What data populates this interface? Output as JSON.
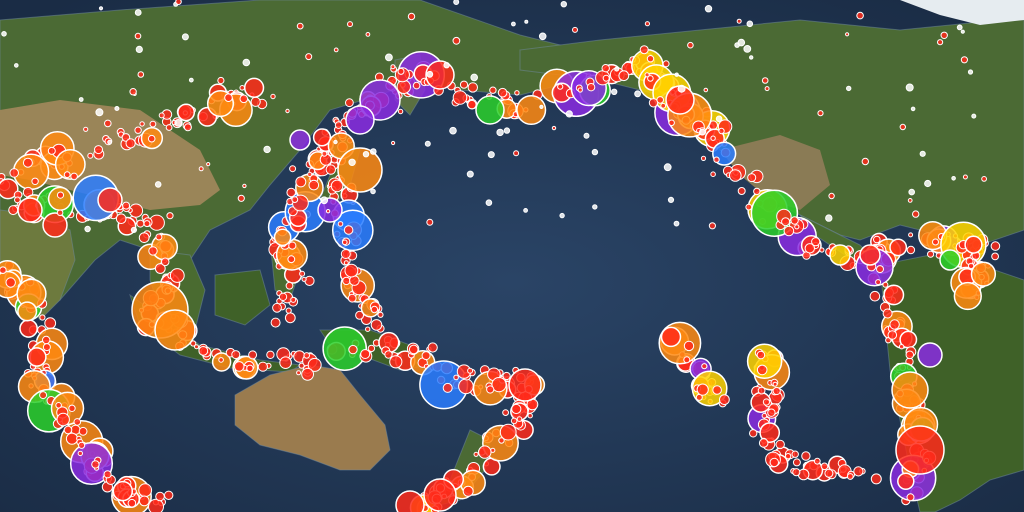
{
  "map": {
    "projection": "pacific-centered",
    "basemap": "satellite-blue-marble",
    "colors": {
      "ocean": "#1f3550",
      "ocean_shallow": "#3a5a7e",
      "land_green": "#3f5a2a",
      "land_dry": "#a08a5c",
      "ice": "#e6ecf0"
    }
  },
  "legend_colors": {
    "small": "#ff2a1a",
    "medium": "#ff8a10",
    "large_a": "#ffd400",
    "large_b": "#2ad02a",
    "large_c": "#2a7cff",
    "large_d": "#8a2be2",
    "outline": "#ffffff"
  }
}
